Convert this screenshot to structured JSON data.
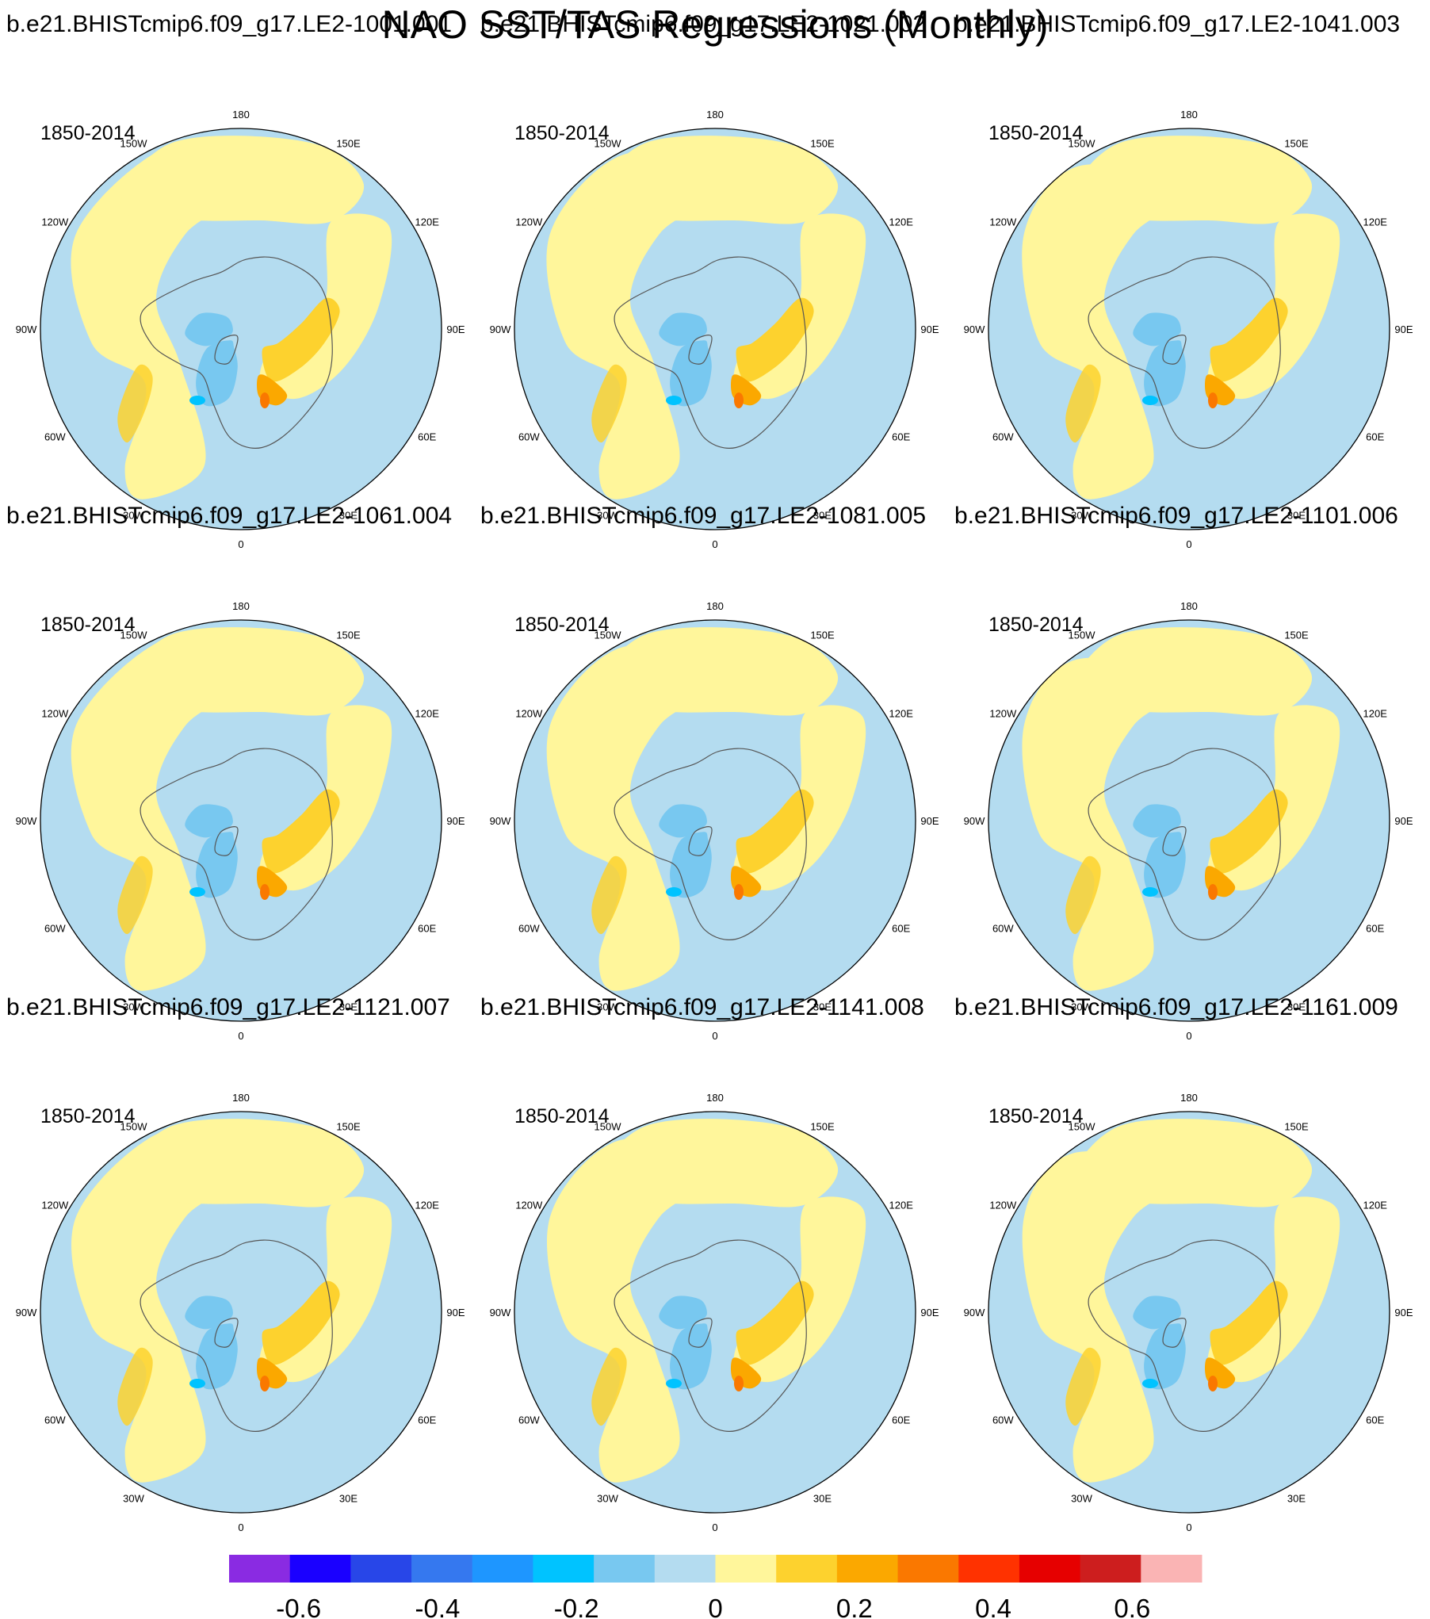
{
  "title": "NAO SST/TAS Regressions (Monthly)",
  "chart_data": {
    "type": "polar-stereographic contour map panels",
    "projection": "north polar stereographic",
    "variable": "NAO regression of SST/TAS",
    "period": "1850-2014",
    "longitude_labels": [
      "180",
      "150E",
      "120E",
      "90E",
      "60E",
      "30E",
      "0",
      "30W",
      "60W",
      "90W",
      "120W",
      "150W"
    ],
    "panels": [
      {
        "title": "b.e21.BHISTcmip6.f09_g17.LE2-1001.001",
        "period": "1850-2014"
      },
      {
        "title": "b.e21.BHISTcmip6.f09_g17.LE2-1021.002",
        "period": "1850-2014"
      },
      {
        "title": "b.e21.BHISTcmip6.f09_g17.LE2-1041.003",
        "period": "1850-2014"
      },
      {
        "title": "b.e21.BHISTcmip6.f09_g17.LE2-1061.004",
        "period": "1850-2014"
      },
      {
        "title": "b.e21.BHISTcmip6.f09_g17.LE2-1081.005",
        "period": "1850-2014"
      },
      {
        "title": "b.e21.BHISTcmip6.f09_g17.LE2-1101.006",
        "period": "1850-2014"
      },
      {
        "title": "b.e21.BHISTcmip6.f09_g17.LE2-1121.007",
        "period": "1850-2014"
      },
      {
        "title": "b.e21.BHISTcmip6.f09_g17.LE2-1141.008",
        "period": "1850-2014"
      },
      {
        "title": "b.e21.BHISTcmip6.f09_g17.LE2-1161.009",
        "period": "1850-2014"
      }
    ],
    "colorbar": {
      "colors": [
        "#8a2be2",
        "#1a00ff",
        "#2846e8",
        "#3578ef",
        "#1e96ff",
        "#00c3ff",
        "#78c8f0",
        "#b4dcf0",
        "#fff69b",
        "#fdd22e",
        "#fba800",
        "#fa7800",
        "#ff3200",
        "#e60000",
        "#cd1e1e",
        "#fab4b4"
      ],
      "tick_labels": [
        "-0.6",
        "-0.4",
        "-0.2",
        "0",
        "0.2",
        "0.4",
        "0.6"
      ],
      "tick_values": [
        -0.6,
        -0.4,
        -0.2,
        0,
        0.2,
        0.4,
        0.6
      ],
      "range": [
        -0.7,
        0.7
      ]
    },
    "field_colors": {
      "ocean_negative": "#b4dcf0",
      "positive": "#fff69b",
      "strong_positive": "#fdd22e",
      "negative_mid": "#78c8f0",
      "negative_strong": "#00c3ff",
      "positive_strong": "#fba800",
      "positive_very_strong": "#fa7800"
    }
  }
}
